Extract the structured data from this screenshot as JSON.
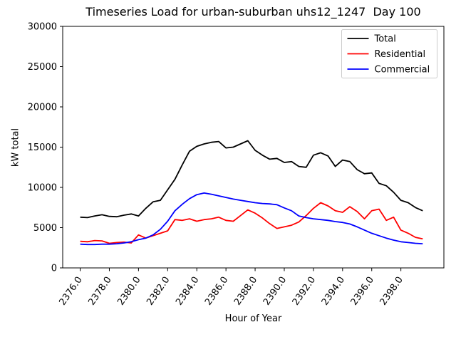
{
  "chart_data": {
    "type": "line",
    "title": "Timeseries Load for urban-suburban uhs12_1247  Day 100",
    "xlabel": "Hour of Year",
    "ylabel": "kW total",
    "xlim": [
      2374.8,
      2400.95
    ],
    "ylim": [
      0,
      30000
    ],
    "grid": false,
    "legend_position": "upper right",
    "xticks": [
      2376,
      2378,
      2380,
      2382,
      2384,
      2386,
      2388,
      2390,
      2392,
      2394,
      2396,
      2398
    ],
    "xtick_labels": [
      "2376.0",
      "2378.0",
      "2380.0",
      "2382.0",
      "2384.0",
      "2386.0",
      "2388.0",
      "2390.0",
      "2392.0",
      "2394.0",
      "2396.0",
      "2398.0"
    ],
    "xtick_rotation_deg": 55,
    "yticks": [
      0,
      5000,
      10000,
      15000,
      20000,
      25000,
      30000
    ],
    "ytick_labels": [
      "0",
      "5000",
      "10000",
      "15000",
      "20000",
      "25000",
      "30000"
    ],
    "x": [
      2376.0,
      2376.5,
      2377.0,
      2377.5,
      2378.0,
      2378.5,
      2379.0,
      2379.5,
      2380.0,
      2380.5,
      2381.0,
      2381.5,
      2382.0,
      2382.5,
      2383.0,
      2383.5,
      2384.0,
      2384.5,
      2385.0,
      2385.5,
      2386.0,
      2386.5,
      2387.0,
      2387.5,
      2388.0,
      2388.5,
      2389.0,
      2389.5,
      2390.0,
      2390.5,
      2391.0,
      2391.5,
      2392.0,
      2392.5,
      2393.0,
      2393.5,
      2394.0,
      2394.5,
      2395.0,
      2395.5,
      2396.0,
      2396.5,
      2397.0,
      2397.5,
      2398.0,
      2398.5,
      2399.0,
      2399.5
    ],
    "series": [
      {
        "name": "Total",
        "color": "#000000",
        "values": [
          6300,
          6250,
          6450,
          6600,
          6400,
          6350,
          6550,
          6700,
          6450,
          7400,
          8200,
          8400,
          9700,
          11000,
          12800,
          14500,
          15100,
          15400,
          15600,
          15700,
          14900,
          15000,
          15400,
          15800,
          14600,
          14000,
          13500,
          13600,
          13100,
          13200,
          12600,
          12500,
          14000,
          14300,
          13900,
          12600,
          13400,
          13200,
          12200,
          11700,
          11800,
          10500,
          10200,
          9400,
          8400,
          8100,
          7500,
          7100
        ]
      },
      {
        "name": "Residential",
        "color": "#ff0000",
        "values": [
          3300,
          3250,
          3400,
          3350,
          3050,
          3150,
          3200,
          3100,
          4100,
          3700,
          4000,
          4300,
          4600,
          6000,
          5900,
          6100,
          5800,
          6000,
          6100,
          6300,
          5900,
          5800,
          6500,
          7200,
          6800,
          6200,
          5500,
          4900,
          5100,
          5300,
          5700,
          6500,
          7400,
          8100,
          7700,
          7100,
          6900,
          7600,
          7000,
          6100,
          7100,
          7300,
          5900,
          6300,
          4700,
          4300,
          3800,
          3600
        ]
      },
      {
        "name": "Commercial",
        "color": "#0000ff",
        "values": [
          2950,
          2900,
          2900,
          2950,
          2950,
          3000,
          3100,
          3250,
          3500,
          3700,
          4100,
          4800,
          5800,
          7100,
          7900,
          8600,
          9100,
          9300,
          9150,
          8950,
          8750,
          8550,
          8400,
          8250,
          8100,
          8000,
          7950,
          7850,
          7450,
          7100,
          6450,
          6250,
          6100,
          6000,
          5900,
          5750,
          5650,
          5450,
          5100,
          4700,
          4300,
          4000,
          3700,
          3450,
          3250,
          3150,
          3050,
          3000
        ]
      }
    ]
  }
}
